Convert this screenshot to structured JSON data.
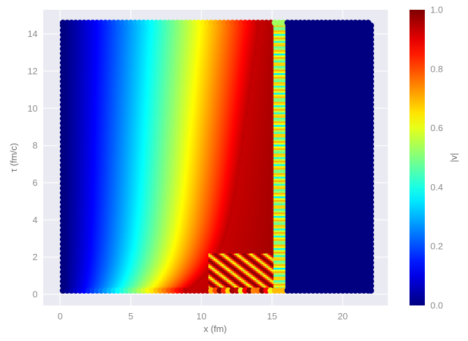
{
  "chart_data": {
    "type": "scatter",
    "title": "",
    "xlabel": "x (fm)",
    "ylabel": "τ (fm/c)",
    "xlim": [
      -1.2,
      23.2
    ],
    "ylim": [
      -0.6,
      15.3
    ],
    "xticks": [
      0,
      5,
      10,
      15,
      20
    ],
    "yticks": [
      0,
      2,
      4,
      6,
      8,
      10,
      12,
      14
    ],
    "xtick_labels": [
      "0",
      "5",
      "10",
      "15",
      "20"
    ],
    "ytick_labels": [
      "0",
      "2",
      "4",
      "6",
      "8",
      "10",
      "12",
      "14"
    ],
    "grid": true,
    "background": "#eaeaf2",
    "colormap": "jet",
    "colorbar": {
      "label": "|v|",
      "range": [
        0.0,
        1.0
      ],
      "ticks": [
        0.0,
        0.2,
        0.4,
        0.6,
        0.8,
        1.0
      ],
      "tick_labels": [
        "0.0",
        "0.2",
        "0.4",
        "0.6",
        "0.8",
        "1.0"
      ]
    },
    "domain": {
      "x": [
        0.2,
        22.0
      ],
      "tau": [
        0.2,
        14.6
      ]
    },
    "shock_front_x": 15.8
  }
}
